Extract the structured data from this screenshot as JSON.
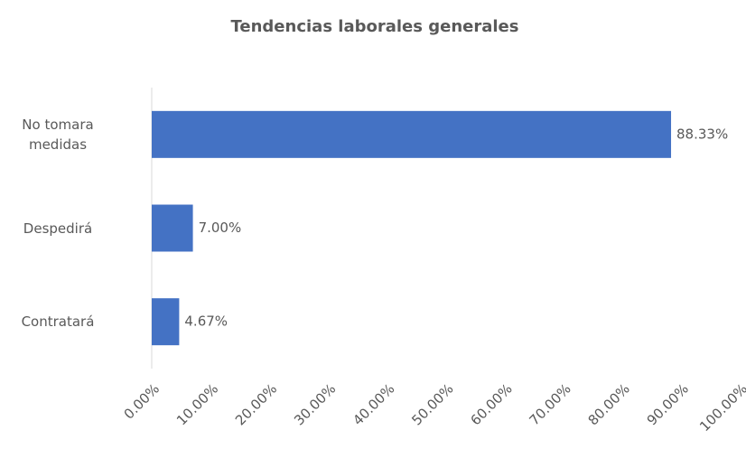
{
  "chart_data": {
    "type": "hbar",
    "title": "Tendencias laborales generales",
    "categories": [
      "No tomara medidas",
      "Despedirá",
      "Contratará"
    ],
    "values": [
      88.33,
      7.0,
      4.67
    ],
    "value_labels": [
      "88.33%",
      "7.00%",
      "4.67%"
    ],
    "color": "#4472c4",
    "xlim": [
      0,
      100
    ],
    "xticks": [
      {
        "value": 0,
        "label": "0.00%"
      },
      {
        "value": 10,
        "label": "10.00%"
      },
      {
        "value": 20,
        "label": "20.00%"
      },
      {
        "value": 30,
        "label": "30.00%"
      },
      {
        "value": 40,
        "label": "40.00%"
      },
      {
        "value": 50,
        "label": "50.00%"
      },
      {
        "value": 60,
        "label": "60.00%"
      },
      {
        "value": 70,
        "label": "70.00%"
      },
      {
        "value": 80,
        "label": "80.00%"
      },
      {
        "value": 90,
        "label": "90.00%"
      },
      {
        "value": 100,
        "label": "100.00%"
      }
    ],
    "grid": false
  }
}
